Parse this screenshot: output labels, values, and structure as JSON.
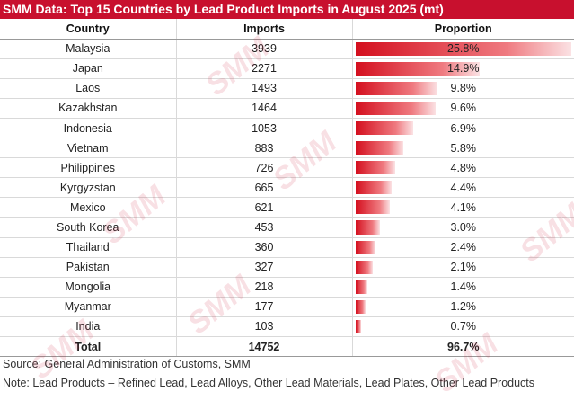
{
  "title": "SMM Data: Top 15 Countries by Lead Product Imports in August 2025 (mt)",
  "chart_data": {
    "type": "table",
    "columns": [
      "Country",
      "Imports",
      "Proportion"
    ],
    "rows": [
      {
        "country": "Malaysia",
        "imports": "3939",
        "proportion": "25.8%",
        "value": 25.8
      },
      {
        "country": "Japan",
        "imports": "2271",
        "proportion": "14.9%",
        "value": 14.9
      },
      {
        "country": "Laos",
        "imports": "1493",
        "proportion": "9.8%",
        "value": 9.8
      },
      {
        "country": "Kazakhstan",
        "imports": "1464",
        "proportion": "9.6%",
        "value": 9.6
      },
      {
        "country": "Indonesia",
        "imports": "1053",
        "proportion": "6.9%",
        "value": 6.9
      },
      {
        "country": "Vietnam",
        "imports": "883",
        "proportion": "5.8%",
        "value": 5.8
      },
      {
        "country": "Philippines",
        "imports": "726",
        "proportion": "4.8%",
        "value": 4.8
      },
      {
        "country": "Kyrgyzstan",
        "imports": "665",
        "proportion": "4.4%",
        "value": 4.4
      },
      {
        "country": "Mexico",
        "imports": "621",
        "proportion": "4.1%",
        "value": 4.1
      },
      {
        "country": "South Korea",
        "imports": "453",
        "proportion": "3.0%",
        "value": 3.0
      },
      {
        "country": "Thailand",
        "imports": "360",
        "proportion": "2.4%",
        "value": 2.4
      },
      {
        "country": "Pakistan",
        "imports": "327",
        "proportion": "2.1%",
        "value": 2.1
      },
      {
        "country": "Mongolia",
        "imports": "218",
        "proportion": "1.4%",
        "value": 1.4
      },
      {
        "country": "Myanmar",
        "imports": "177",
        "proportion": "1.2%",
        "value": 1.2
      },
      {
        "country": "India",
        "imports": "103",
        "proportion": "0.7%",
        "value": 0.7
      }
    ],
    "total": {
      "label": "Total",
      "imports": "14752",
      "proportion": "96.7%"
    },
    "bar_max": 25.8,
    "bar_color": "#d40f1e"
  },
  "source": "Source: General Administration of Customs, SMM",
  "note": "Note: Lead Products – Refined Lead, Lead Alloys, Other Lead Materials, Lead Plates, Other Lead Products",
  "watermark": "SMM",
  "accent_color": "#c8102e"
}
